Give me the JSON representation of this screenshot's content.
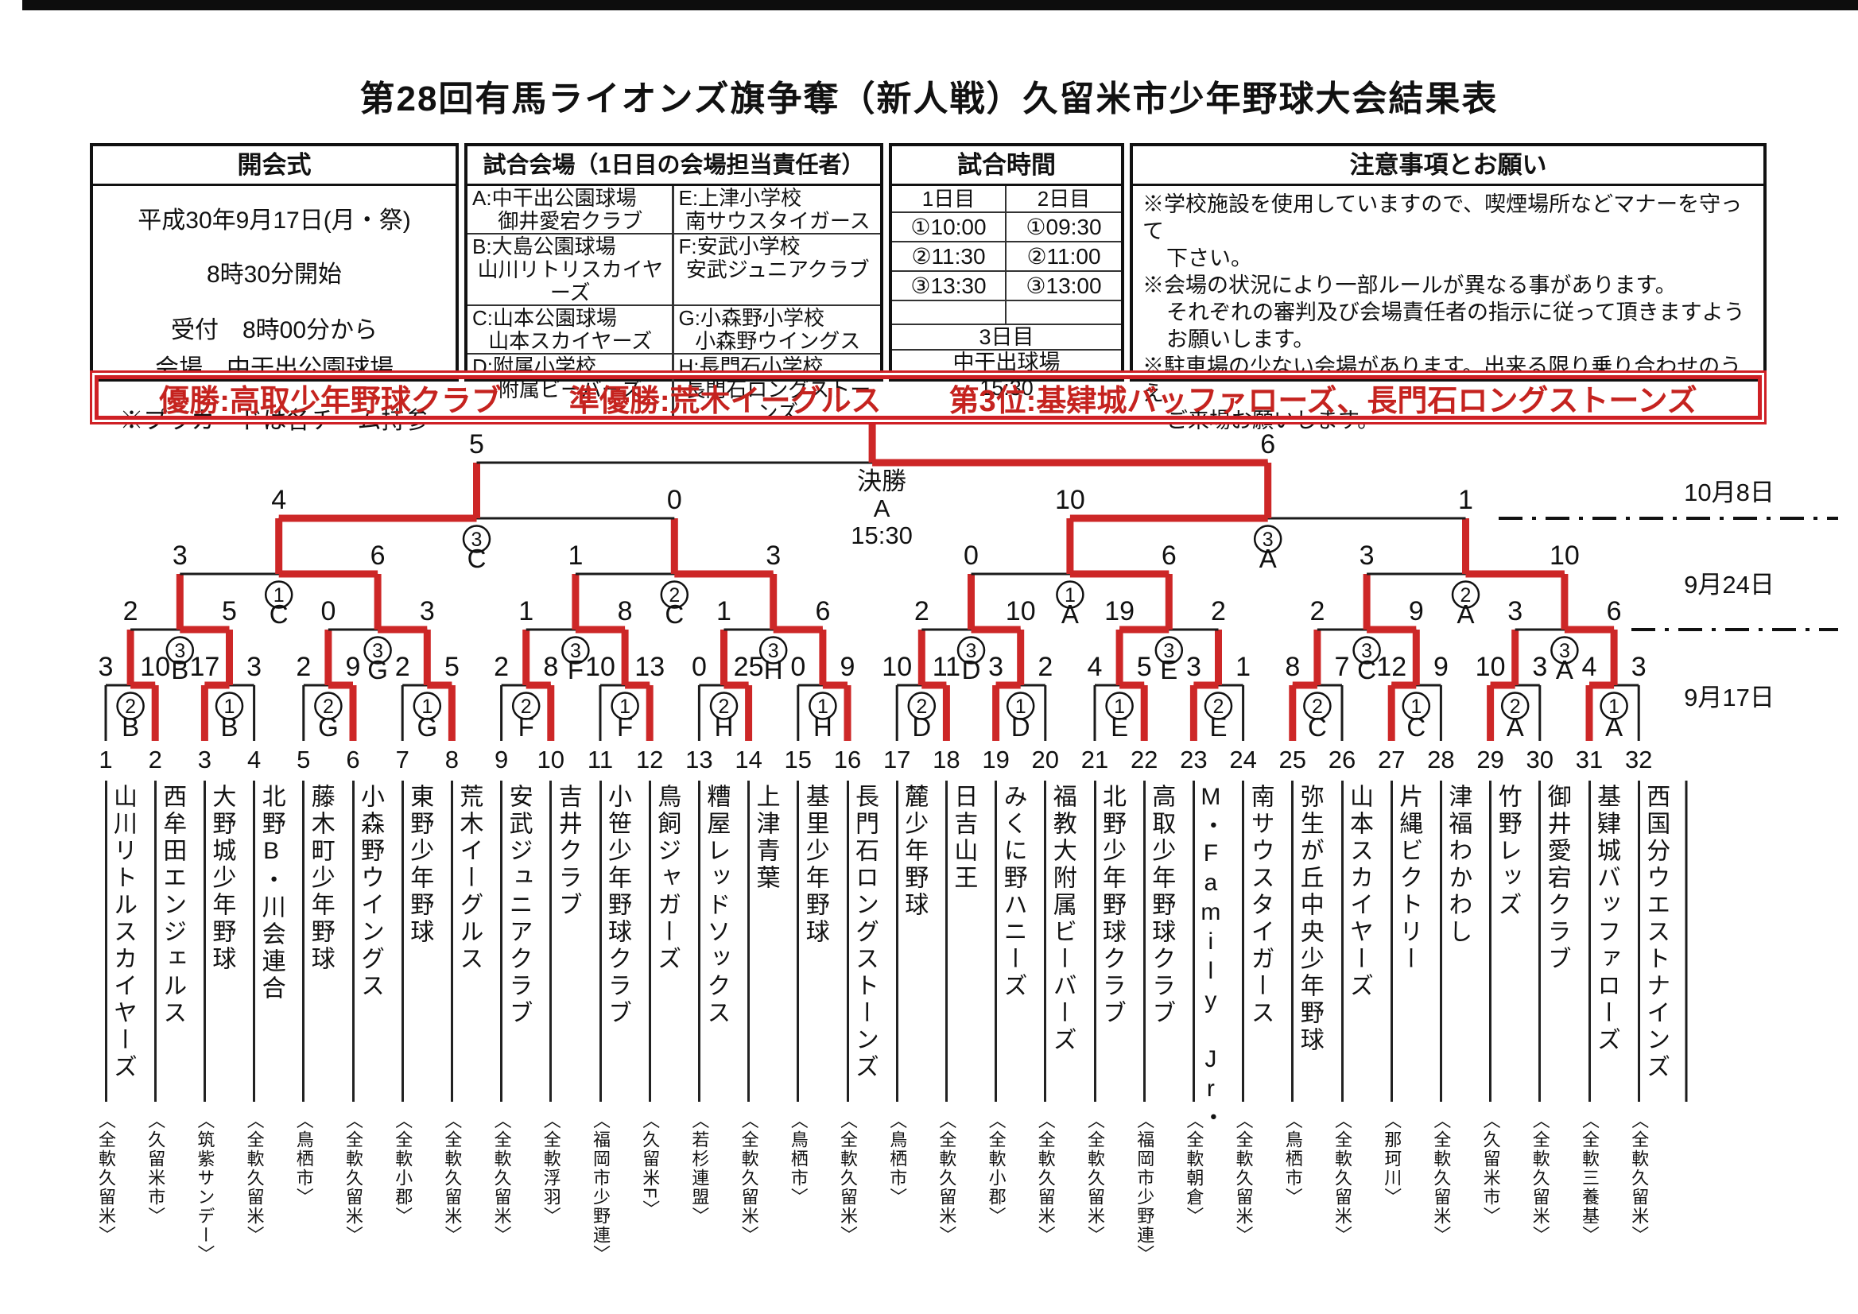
{
  "title": "第28回有馬ライオンズ旗争奪（新人戦）久留米市少年野球大会結果表",
  "info": {
    "opening": {
      "header": "開会式",
      "lines": [
        "平成30年9月17日(月・祭)",
        "8時30分開始",
        "受付　8時00分から",
        "会場　中干出公園球場",
        "※プラカードは各チーム持参"
      ]
    },
    "venues": {
      "header": "試合会場（1日目の会場担当責任者）",
      "items": [
        {
          "label": "A:中干出公園球場",
          "club": "御井愛宕クラブ"
        },
        {
          "label": "E:上津小学校",
          "club": "南サウスタイガース"
        },
        {
          "label": "B:大島公園球場",
          "club": "山川リトリスカイヤーズ"
        },
        {
          "label": "F:安武小学校",
          "club": "安武ジュニアクラブ"
        },
        {
          "label": "C:山本公園球場",
          "club": "山本スカイヤーズ"
        },
        {
          "label": "G:小森野小学校",
          "club": "小森野ウイングス"
        },
        {
          "label": "D:附属小学校",
          "club": "附属ビーバーズ"
        },
        {
          "label": "H:長門石小学校",
          "club": "長門石ロングストーンズ"
        }
      ]
    },
    "times": {
      "header": "試合時間",
      "day_headers": [
        "1日目",
        "2日目"
      ],
      "day_rows": [
        [
          "①10:00",
          "①09:30"
        ],
        [
          "②11:30",
          "②11:00"
        ],
        [
          "③13:30",
          "③13:00"
        ]
      ],
      "day3": {
        "label": "3日目",
        "venue": "中干出球場",
        "time": "15:30"
      }
    },
    "notes": {
      "header": "注意事項とお願い",
      "lines": [
        {
          "indent": false,
          "text": "※学校施設を使用していますので、喫煙場所などマナーを守って"
        },
        {
          "indent": true,
          "text": "下さい。"
        },
        {
          "indent": false,
          "text": "※会場の状況により一部ルールが異なる事があります。"
        },
        {
          "indent": true,
          "text": "それぞれの審判及び会場責任者の指示に従って頂きますよう"
        },
        {
          "indent": true,
          "text": "お願いします。"
        },
        {
          "indent": false,
          "text": "※駐車場の少ない会場があります。出来る限り乗り合わせのうえ"
        },
        {
          "indent": true,
          "text": "ご来場お願いします。"
        }
      ]
    }
  },
  "results_banner": {
    "parts": [
      "優勝:高取少年野球クラブ",
      "準優勝:荒木イーグルス",
      "第3位:基肄城バッファローズ、長門石ロングストーンズ"
    ]
  },
  "colors": {
    "accent_red": "#cf2025",
    "path_red": "#cd2727",
    "line_black": "#1b1b1b"
  },
  "bracket": {
    "dates": [
      "10月8日",
      "9月24日",
      "9月17日"
    ],
    "teams": [
      {
        "no": 1,
        "name": "山川リトルスカイヤーズ",
        "league": "〈全軟久留米〉"
      },
      {
        "no": 2,
        "name": "西牟田エンジェルス",
        "league": "〈久留米市〉"
      },
      {
        "no": 3,
        "name": "大野城少年野球",
        "league": "〈筑紫サンデー〉"
      },
      {
        "no": 4,
        "name": "北野B・川会連合",
        "league": "〈全軟久留米〉"
      },
      {
        "no": 5,
        "name": "藤木町少年野球",
        "league": "〈鳥栖市〉"
      },
      {
        "no": 6,
        "name": "小森野ウイングス",
        "league": "〈全軟久留米〉"
      },
      {
        "no": 7,
        "name": "東野少年野球",
        "league": "〈全軟小郡〉"
      },
      {
        "no": 8,
        "name": "荒木イーグルス",
        "league": "〈全軟久留米〉"
      },
      {
        "no": 9,
        "name": "安武ジュニアクラブ",
        "league": "〈全軟久留米〉"
      },
      {
        "no": 10,
        "name": "吉井クラブ",
        "league": "〈全軟浮羽〉"
      },
      {
        "no": 11,
        "name": "小笹少年野球クラブ",
        "league": "〈福岡市少野連〉"
      },
      {
        "no": 12,
        "name": "鳥飼ジャガーズ",
        "league": "〈久留米F〉"
      },
      {
        "no": 13,
        "name": "糟屋レッドソックス",
        "league": "〈若杉連盟〉"
      },
      {
        "no": 14,
        "name": "上津青葉",
        "league": "〈全軟久留米〉"
      },
      {
        "no": 15,
        "name": "基里少年野球",
        "league": "〈鳥栖市〉"
      },
      {
        "no": 16,
        "name": "長門石ロングストーンズ",
        "league": "〈全軟久留米〉"
      },
      {
        "no": 17,
        "name": "麓少年野球",
        "league": "〈鳥栖市〉"
      },
      {
        "no": 18,
        "name": "日吉山王",
        "league": "〈全軟久留米〉"
      },
      {
        "no": 19,
        "name": "みくに野ハニーズ",
        "league": "〈全軟小郡〉"
      },
      {
        "no": 20,
        "name": "福教大附属ビーバーズ",
        "league": "〈全軟久留米〉"
      },
      {
        "no": 21,
        "name": "北野少年野球クラブ",
        "league": "〈全軟久留米〉"
      },
      {
        "no": 22,
        "name": "高取少年野球クラブ",
        "league": "〈福岡市少野連〉"
      },
      {
        "no": 23,
        "name": "M・Family Jr・",
        "league": "〈全軟朝倉〉"
      },
      {
        "no": 24,
        "name": "南サウスタイガース",
        "league": "〈全軟久留米〉"
      },
      {
        "no": 25,
        "name": "弥生が丘中央少年野球",
        "league": "〈鳥栖市〉"
      },
      {
        "no": 26,
        "name": "山本スカイヤーズ",
        "league": "〈全軟久留米〉"
      },
      {
        "no": 27,
        "name": "片縄ビクトリー",
        "league": "〈那珂川〉"
      },
      {
        "no": 28,
        "name": "津福わかわし",
        "league": "〈全軟久留米〉"
      },
      {
        "no": 29,
        "name": "竹野レッズ",
        "league": "〈久留米市〉"
      },
      {
        "no": 30,
        "name": "御井愛宕クラブ",
        "league": "〈全軟久留米〉"
      },
      {
        "no": 31,
        "name": "基肄城バッファローズ",
        "league": "〈全軟三養基〉"
      },
      {
        "no": 32,
        "name": "西国分ウエストナインズ",
        "league": "〈全軟久留米〉"
      }
    ],
    "round1": [
      {
        "game": 2,
        "venue": "B",
        "score": [
          3,
          10
        ],
        "winner": "R"
      },
      {
        "game": 1,
        "venue": "B",
        "score": [
          17,
          3
        ],
        "winner": "L"
      },
      {
        "game": 2,
        "venue": "G",
        "score": [
          2,
          9
        ],
        "winner": "R"
      },
      {
        "game": 1,
        "venue": "G",
        "score": [
          2,
          5
        ],
        "winner": "R"
      },
      {
        "game": 2,
        "venue": "F",
        "score": [
          2,
          8
        ],
        "winner": "R"
      },
      {
        "game": 1,
        "venue": "F",
        "score": [
          10,
          13
        ],
        "winner": "R"
      },
      {
        "game": 2,
        "venue": "H",
        "score": [
          0,
          25
        ],
        "winner": "R"
      },
      {
        "game": 1,
        "venue": "H",
        "score": [
          0,
          9
        ],
        "winner": "R"
      },
      {
        "game": 2,
        "venue": "D",
        "score": [
          10,
          11
        ],
        "winner": "R"
      },
      {
        "game": 1,
        "venue": "D",
        "score": [
          3,
          2
        ],
        "winner": "L"
      },
      {
        "game": 1,
        "venue": "E",
        "score": [
          4,
          5
        ],
        "winner": "R"
      },
      {
        "game": 2,
        "venue": "E",
        "score": [
          3,
          1
        ],
        "winner": "L"
      },
      {
        "game": 2,
        "venue": "C",
        "score": [
          8,
          7
        ],
        "winner": "L"
      },
      {
        "game": 1,
        "venue": "C",
        "score": [
          12,
          9
        ],
        "winner": "L"
      },
      {
        "game": 2,
        "venue": "A",
        "score": [
          10,
          3
        ],
        "winner": "L"
      },
      {
        "game": 1,
        "venue": "A",
        "score": [
          4,
          3
        ],
        "winner": "L"
      }
    ],
    "round2": [
      {
        "game": 3,
        "venue": "B",
        "score": [
          2,
          5
        ],
        "winner": "R"
      },
      {
        "game": 3,
        "venue": "G",
        "score": [
          0,
          3
        ],
        "winner": "R"
      },
      {
        "game": 3,
        "venue": "F",
        "score": [
          1,
          8
        ],
        "winner": "R"
      },
      {
        "game": 3,
        "venue": "H",
        "score": [
          1,
          6
        ],
        "winner": "R"
      },
      {
        "game": 3,
        "venue": "D",
        "score": [
          2,
          10
        ],
        "winner": "R"
      },
      {
        "game": 3,
        "venue": "E",
        "score": [
          19,
          2
        ],
        "winner": "L"
      },
      {
        "game": 3,
        "venue": "C",
        "score": [
          2,
          9
        ],
        "winner": "R"
      },
      {
        "game": 3,
        "venue": "A",
        "score": [
          3,
          6
        ],
        "winner": "R"
      }
    ],
    "round3": [
      {
        "game": 1,
        "venue": "C",
        "score": [
          3,
          6
        ],
        "winner": "R"
      },
      {
        "game": 2,
        "venue": "C",
        "score": [
          1,
          3
        ],
        "winner": "R"
      },
      {
        "game": 1,
        "venue": "A",
        "score": [
          0,
          6
        ],
        "winner": "R"
      },
      {
        "game": 2,
        "venue": "A",
        "score": [
          3,
          10
        ],
        "winner": "R"
      }
    ],
    "semifinals": [
      {
        "game": 3,
        "venue": "C",
        "score": [
          4,
          0
        ],
        "winner": "L"
      },
      {
        "game": 3,
        "venue": "A",
        "score": [
          10,
          1
        ],
        "winner": "L"
      }
    ],
    "final": {
      "label": "決勝",
      "venue": "A",
      "time": "15:30",
      "score": [
        5,
        6
      ],
      "winner": "R"
    }
  }
}
